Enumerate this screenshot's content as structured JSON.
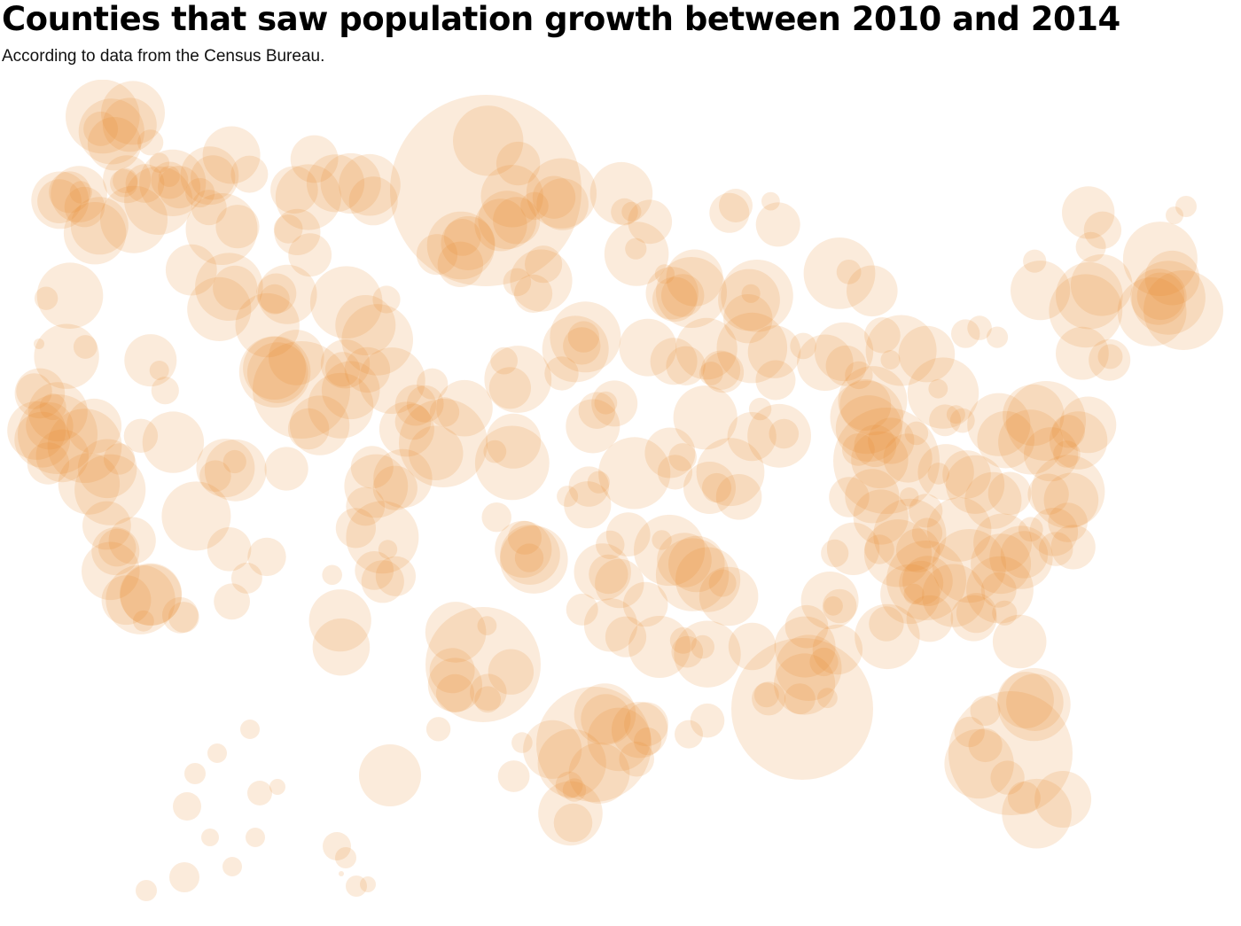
{
  "header": {
    "title": "Counties that saw population growth between 2010 and 2014",
    "subtitle": "According to data from the Census Bureau."
  },
  "map": {
    "type": "bubble-map",
    "region": "United States counties",
    "bubble_color": "#e8892b",
    "bubble_opacity": 0.17,
    "grid": false,
    "legend": "none"
  }
}
